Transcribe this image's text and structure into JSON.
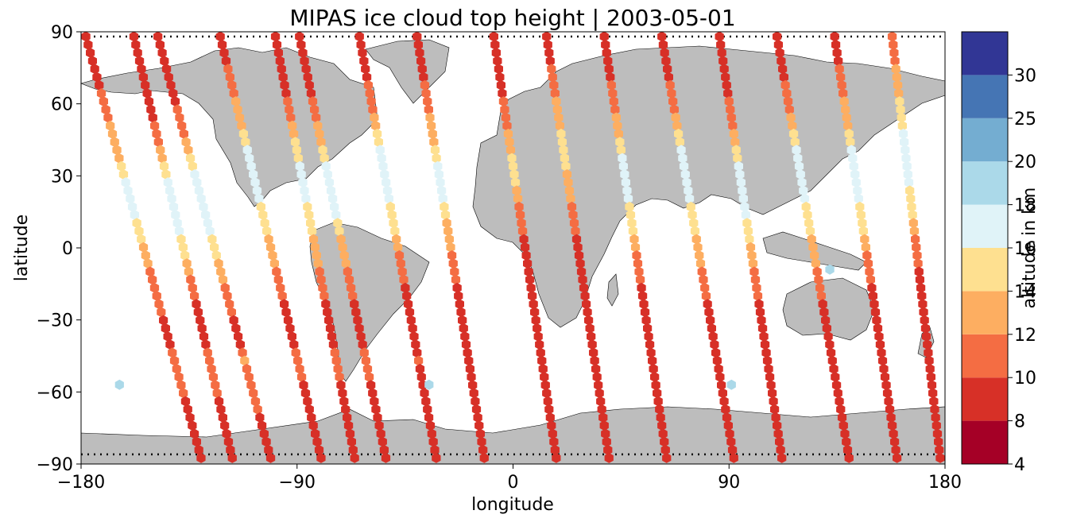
{
  "chart_data": {
    "type": "scatter",
    "title": "MIPAS ice cloud top height | 2003-05-01",
    "xlabel": "longitude",
    "ylabel": "latitude",
    "xlim": [
      -180,
      180
    ],
    "ylim": [
      -90,
      90
    ],
    "xticks": [
      "−180",
      "−90",
      "0",
      "90",
      "180"
    ],
    "yticks": [
      "90",
      "60",
      "30",
      "0",
      "−30",
      "−60",
      "−90"
    ],
    "grid": false,
    "background_map": "world coastlines, land shaded grey",
    "colors": {
      "land": "#bdbdbd",
      "coast": "#000000",
      "ocean": "#ffffff",
      "track": "#000000"
    },
    "colorbar": {
      "label": "altitude in km",
      "ticks": [
        "4",
        "8",
        "10",
        "12",
        "14",
        "16",
        "18",
        "20",
        "25",
        "30"
      ],
      "bounds": [
        4,
        8,
        10,
        12,
        14,
        16,
        18,
        20,
        25,
        30
      ],
      "colors": [
        "#a50026",
        "#d73027",
        "#f46d43",
        "#fdae61",
        "#fee090",
        "#e0f3f8",
        "#abd9e9",
        "#74add1",
        "#4575b4",
        "#313695"
      ]
    },
    "series": [
      {
        "orbit": 1,
        "lon0": -178,
        "lon1": -130,
        "values": [
          9,
          9,
          9,
          9,
          11,
          11,
          13,
          13,
          14,
          16,
          17,
          16,
          15,
          13,
          12,
          11,
          11,
          10,
          9,
          9,
          11,
          11,
          10,
          9,
          9,
          9,
          9
        ]
      },
      {
        "orbit": 2,
        "lon0": -158,
        "lon1": -117,
        "values": [
          9,
          9,
          9,
          9,
          9,
          9,
          11,
          12,
          14,
          16,
          17,
          16,
          16,
          15,
          13,
          11,
          10,
          9,
          9,
          9,
          11,
          11,
          10,
          9,
          9,
          9,
          9
        ]
      },
      {
        "orbit": 3,
        "lon0": -148,
        "lon1": -101,
        "values": [
          9,
          9,
          9,
          9,
          9,
          11,
          11,
          13,
          15,
          17,
          16,
          17,
          16,
          15,
          13,
          12,
          11,
          10,
          9,
          9,
          12,
          11,
          10,
          10,
          9,
          9,
          9
        ]
      },
      {
        "orbit": 4,
        "lon0": -122,
        "lon1": -80,
        "values": [
          9,
          9,
          10,
          11,
          12,
          13,
          14,
          16,
          17,
          16,
          16,
          15,
          14,
          13,
          12,
          11,
          10,
          9,
          9,
          9,
          11,
          10,
          9,
          9,
          9,
          9,
          9
        ]
      },
      {
        "orbit": 5,
        "lon0": -99,
        "lon1": -66,
        "values": [
          9,
          9,
          9,
          9,
          10,
          11,
          13,
          15,
          16,
          17,
          16,
          15,
          14,
          13,
          12,
          11,
          10,
          9,
          9,
          9,
          11,
          10,
          9,
          9,
          9,
          9,
          9
        ]
      },
      {
        "orbit": 6,
        "lon0": -89,
        "lon1": -53,
        "values": [
          9,
          9,
          9,
          9,
          10,
          11,
          13,
          14,
          16,
          17,
          17,
          16,
          14,
          13,
          12,
          11,
          10,
          9,
          9,
          9,
          11,
          10,
          9,
          9,
          9,
          9,
          9
        ]
      },
      {
        "orbit": 7,
        "lon0": -64,
        "lon1": -32,
        "values": [
          9,
          9,
          9,
          10,
          11,
          12,
          14,
          16,
          17,
          17,
          16,
          15,
          14,
          12,
          11,
          10,
          9,
          9,
          9,
          9,
          10,
          9,
          9,
          9,
          9,
          9,
          9
        ]
      },
      {
        "orbit": 8,
        "lon0": -40,
        "lon1": -12,
        "values": [
          9,
          9,
          9,
          10,
          11,
          12,
          13,
          14,
          16,
          17,
          16,
          14,
          13,
          12,
          11,
          10,
          9,
          9,
          9,
          9,
          9,
          9,
          9,
          9,
          9,
          9,
          9
        ]
      },
      {
        "orbit": 9,
        "lon0": -8,
        "lon1": 18,
        "values": [
          9,
          9,
          9,
          9,
          10,
          11,
          12,
          13,
          15,
          14,
          12,
          11,
          10,
          9,
          9,
          9,
          9,
          9,
          9,
          9,
          9,
          9,
          9,
          9,
          9,
          9,
          9
        ]
      },
      {
        "orbit": 10,
        "lon0": 14,
        "lon1": 40,
        "values": [
          9,
          9,
          10,
          11,
          12,
          13,
          14,
          15,
          14,
          13,
          12,
          11,
          10,
          9,
          9,
          9,
          9,
          9,
          9,
          9,
          9,
          9,
          9,
          9,
          9,
          9,
          9
        ]
      },
      {
        "orbit": 11,
        "lon0": 38,
        "lon1": 64,
        "values": [
          9,
          9,
          9,
          10,
          11,
          12,
          13,
          15,
          17,
          17,
          16,
          15,
          14,
          12,
          11,
          10,
          9,
          9,
          9,
          9,
          9,
          9,
          9,
          9,
          9,
          9,
          9
        ]
      },
      {
        "orbit": 12,
        "lon0": 62,
        "lon1": 92,
        "values": [
          9,
          9,
          9,
          10,
          11,
          12,
          14,
          16,
          17,
          17,
          16,
          15,
          14,
          13,
          12,
          11,
          10,
          9,
          9,
          9,
          9,
          9,
          9,
          9,
          9,
          9,
          9
        ]
      },
      {
        "orbit": 13,
        "lon0": 86,
        "lon1": 112,
        "values": [
          9,
          9,
          9,
          9,
          10,
          11,
          12,
          14,
          16,
          17,
          17,
          16,
          15,
          13,
          12,
          11,
          10,
          9,
          9,
          9,
          9,
          9,
          9,
          9,
          9,
          9,
          9
        ]
      },
      {
        "orbit": 14,
        "lon0": 110,
        "lon1": 140,
        "values": [
          9,
          9,
          9,
          10,
          11,
          12,
          14,
          16,
          17,
          17,
          16,
          15,
          14,
          13,
          12,
          11,
          10,
          9,
          9,
          9,
          9,
          9,
          9,
          9,
          9,
          9,
          9
        ]
      },
      {
        "orbit": 15,
        "lon0": 134,
        "lon1": 160,
        "values": [
          9,
          9,
          10,
          11,
          12,
          13,
          14,
          16,
          17,
          17,
          16,
          15,
          14,
          12,
          11,
          10,
          9,
          9,
          9,
          9,
          9,
          9,
          9,
          9,
          9,
          9,
          9
        ]
      },
      {
        "orbit": 16,
        "lon0": 158,
        "lon1": 178,
        "values": [
          11,
          11,
          12,
          13,
          14,
          15,
          16,
          17,
          17,
          16,
          15,
          14,
          12,
          11,
          10,
          9,
          9,
          9,
          9,
          9,
          9,
          9,
          9,
          9,
          9,
          9,
          9
        ]
      }
    ],
    "isolated_points": [
      {
        "lon": -164,
        "lat": -57,
        "value": 19
      },
      {
        "lon": -35,
        "lat": -57,
        "value": 19
      },
      {
        "lon": 91,
        "lat": -57,
        "value": 19
      },
      {
        "lon": 132,
        "lat": -9,
        "value": 19
      }
    ]
  }
}
